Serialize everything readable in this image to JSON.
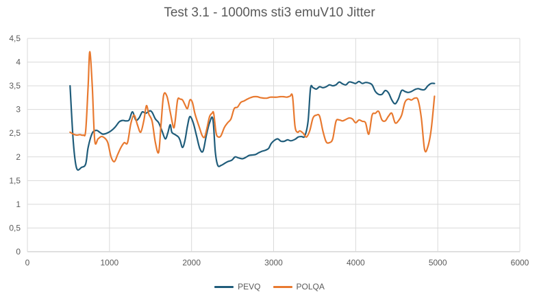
{
  "chart_data": {
    "type": "scatter",
    "title": "Test 3.1 - 1000ms sti3 emuV10 Jitter",
    "xlabel": "",
    "ylabel": "",
    "xlim": [
      0,
      6000
    ],
    "ylim": [
      0,
      4.5
    ],
    "x_ticks": [
      "0",
      "1000",
      "2000",
      "3000",
      "4000",
      "5000",
      "6000"
    ],
    "y_ticks": [
      "0",
      "0,5",
      "1",
      "1,5",
      "2",
      "2,5",
      "3",
      "3,5",
      "4",
      "4,5"
    ],
    "grid": "vertical and horizontal major gridlines",
    "legend_position": "bottom",
    "smooth": true,
    "series": [
      {
        "name": "PEVQ",
        "color": "#1f5c7a",
        "points": [
          [
            520,
            3.5
          ],
          [
            560,
            2.3
          ],
          [
            600,
            1.76
          ],
          [
            660,
            1.78
          ],
          [
            710,
            1.85
          ],
          [
            740,
            2.2
          ],
          [
            790,
            2.5
          ],
          [
            840,
            2.56
          ],
          [
            880,
            2.52
          ],
          [
            920,
            2.48
          ],
          [
            970,
            2.5
          ],
          [
            1020,
            2.55
          ],
          [
            1070,
            2.63
          ],
          [
            1120,
            2.74
          ],
          [
            1160,
            2.77
          ],
          [
            1200,
            2.76
          ],
          [
            1240,
            2.78
          ],
          [
            1280,
            2.95
          ],
          [
            1320,
            2.78
          ],
          [
            1360,
            2.82
          ],
          [
            1400,
            2.95
          ],
          [
            1440,
            2.92
          ],
          [
            1490,
            2.97
          ],
          [
            1520,
            2.94
          ],
          [
            1560,
            2.8
          ],
          [
            1600,
            2.72
          ],
          [
            1640,
            2.55
          ],
          [
            1680,
            2.38
          ],
          [
            1710,
            2.5
          ],
          [
            1740,
            2.68
          ],
          [
            1760,
            2.52
          ],
          [
            1800,
            2.47
          ],
          [
            1840,
            2.42
          ],
          [
            1860,
            2.35
          ],
          [
            1890,
            2.2
          ],
          [
            1920,
            2.35
          ],
          [
            1950,
            2.65
          ],
          [
            1980,
            2.85
          ],
          [
            2020,
            2.72
          ],
          [
            2060,
            2.45
          ],
          [
            2100,
            2.18
          ],
          [
            2140,
            2.12
          ],
          [
            2180,
            2.45
          ],
          [
            2220,
            2.72
          ],
          [
            2260,
            2.8
          ],
          [
            2290,
            2.1
          ],
          [
            2320,
            1.82
          ],
          [
            2360,
            1.82
          ],
          [
            2400,
            1.86
          ],
          [
            2440,
            1.9
          ],
          [
            2490,
            1.93
          ],
          [
            2530,
            2.0
          ],
          [
            2570,
            1.98
          ],
          [
            2620,
            1.96
          ],
          [
            2660,
            1.99
          ],
          [
            2700,
            2.03
          ],
          [
            2740,
            2.04
          ],
          [
            2780,
            2.05
          ],
          [
            2820,
            2.09
          ],
          [
            2860,
            2.12
          ],
          [
            2900,
            2.14
          ],
          [
            2940,
            2.18
          ],
          [
            2970,
            2.28
          ],
          [
            3010,
            2.35
          ],
          [
            3050,
            2.38
          ],
          [
            3090,
            2.33
          ],
          [
            3130,
            2.33
          ],
          [
            3170,
            2.36
          ],
          [
            3210,
            2.34
          ],
          [
            3260,
            2.37
          ],
          [
            3300,
            2.42
          ],
          [
            3340,
            2.43
          ],
          [
            3380,
            2.44
          ],
          [
            3420,
            2.75
          ],
          [
            3450,
            3.45
          ],
          [
            3480,
            3.46
          ],
          [
            3520,
            3.43
          ],
          [
            3560,
            3.48
          ],
          [
            3600,
            3.46
          ],
          [
            3640,
            3.48
          ],
          [
            3680,
            3.52
          ],
          [
            3720,
            3.5
          ],
          [
            3760,
            3.52
          ],
          [
            3800,
            3.58
          ],
          [
            3840,
            3.54
          ],
          [
            3880,
            3.52
          ],
          [
            3920,
            3.58
          ],
          [
            3960,
            3.57
          ],
          [
            4000,
            3.55
          ],
          [
            4040,
            3.59
          ],
          [
            4080,
            3.55
          ],
          [
            4120,
            3.57
          ],
          [
            4160,
            3.56
          ],
          [
            4200,
            3.52
          ],
          [
            4240,
            3.38
          ],
          [
            4280,
            3.32
          ],
          [
            4320,
            3.32
          ],
          [
            4360,
            3.4
          ],
          [
            4400,
            3.35
          ],
          [
            4440,
            3.2
          ],
          [
            4480,
            3.12
          ],
          [
            4520,
            3.22
          ],
          [
            4560,
            3.4
          ],
          [
            4600,
            3.38
          ],
          [
            4640,
            3.36
          ],
          [
            4680,
            3.38
          ],
          [
            4720,
            3.42
          ],
          [
            4760,
            3.44
          ],
          [
            4800,
            3.42
          ],
          [
            4840,
            3.42
          ],
          [
            4880,
            3.5
          ],
          [
            4920,
            3.55
          ],
          [
            4960,
            3.55
          ]
        ]
      },
      {
        "name": "POLQA",
        "color": "#e8792f",
        "points": [
          [
            520,
            2.52
          ],
          [
            560,
            2.48
          ],
          [
            600,
            2.46
          ],
          [
            640,
            2.47
          ],
          [
            680,
            2.46
          ],
          [
            710,
            2.55
          ],
          [
            740,
            3.5
          ],
          [
            760,
            4.22
          ],
          [
            790,
            3.5
          ],
          [
            820,
            2.35
          ],
          [
            860,
            2.38
          ],
          [
            900,
            2.43
          ],
          [
            940,
            2.4
          ],
          [
            980,
            2.3
          ],
          [
            1020,
            2.0
          ],
          [
            1060,
            1.9
          ],
          [
            1100,
            2.05
          ],
          [
            1140,
            2.2
          ],
          [
            1180,
            2.3
          ],
          [
            1220,
            2.3
          ],
          [
            1260,
            2.7
          ],
          [
            1300,
            2.88
          ],
          [
            1340,
            2.68
          ],
          [
            1380,
            2.52
          ],
          [
            1420,
            2.78
          ],
          [
            1450,
            3.08
          ],
          [
            1480,
            2.9
          ],
          [
            1520,
            2.75
          ],
          [
            1560,
            2.3
          ],
          [
            1600,
            2.1
          ],
          [
            1630,
            2.72
          ],
          [
            1660,
            3.3
          ],
          [
            1700,
            3.28
          ],
          [
            1740,
            2.95
          ],
          [
            1780,
            2.62
          ],
          [
            1800,
            2.75
          ],
          [
            1830,
            3.2
          ],
          [
            1860,
            3.22
          ],
          [
            1890,
            3.2
          ],
          [
            1920,
            3.1
          ],
          [
            1950,
            3.02
          ],
          [
            1980,
            3.2
          ],
          [
            2010,
            3.15
          ],
          [
            2040,
            2.92
          ],
          [
            2070,
            2.75
          ],
          [
            2100,
            2.6
          ],
          [
            2130,
            2.45
          ],
          [
            2160,
            2.42
          ],
          [
            2190,
            2.62
          ],
          [
            2220,
            2.85
          ],
          [
            2250,
            2.92
          ],
          [
            2270,
            2.92
          ],
          [
            2300,
            2.5
          ],
          [
            2330,
            2.42
          ],
          [
            2360,
            2.45
          ],
          [
            2400,
            2.62
          ],
          [
            2440,
            2.72
          ],
          [
            2480,
            2.8
          ],
          [
            2520,
            3.02
          ],
          [
            2560,
            3.05
          ],
          [
            2600,
            3.15
          ],
          [
            2640,
            3.18
          ],
          [
            2680,
            3.22
          ],
          [
            2720,
            3.25
          ],
          [
            2760,
            3.27
          ],
          [
            2800,
            3.27
          ],
          [
            2840,
            3.25
          ],
          [
            2880,
            3.24
          ],
          [
            2920,
            3.24
          ],
          [
            2960,
            3.26
          ],
          [
            3000,
            3.26
          ],
          [
            3040,
            3.26
          ],
          [
            3080,
            3.27
          ],
          [
            3120,
            3.27
          ],
          [
            3160,
            3.26
          ],
          [
            3200,
            3.28
          ],
          [
            3230,
            3.28
          ],
          [
            3260,
            2.65
          ],
          [
            3290,
            2.52
          ],
          [
            3320,
            2.55
          ],
          [
            3360,
            2.5
          ],
          [
            3400,
            2.42
          ],
          [
            3440,
            2.55
          ],
          [
            3480,
            2.82
          ],
          [
            3520,
            2.88
          ],
          [
            3560,
            2.86
          ],
          [
            3600,
            2.55
          ],
          [
            3640,
            2.32
          ],
          [
            3680,
            2.3
          ],
          [
            3720,
            2.38
          ],
          [
            3760,
            2.75
          ],
          [
            3800,
            2.78
          ],
          [
            3840,
            2.76
          ],
          [
            3880,
            2.79
          ],
          [
            3920,
            2.82
          ],
          [
            3960,
            2.8
          ],
          [
            4000,
            2.72
          ],
          [
            4040,
            2.78
          ],
          [
            4080,
            2.75
          ],
          [
            4120,
            2.72
          ],
          [
            4160,
            2.48
          ],
          [
            4200,
            2.88
          ],
          [
            4240,
            2.92
          ],
          [
            4280,
            2.96
          ],
          [
            4320,
            2.78
          ],
          [
            4360,
            2.76
          ],
          [
            4400,
            2.86
          ],
          [
            4440,
            2.92
          ],
          [
            4480,
            2.72
          ],
          [
            4520,
            2.76
          ],
          [
            4560,
            2.88
          ],
          [
            4600,
            3.15
          ],
          [
            4640,
            3.22
          ],
          [
            4680,
            3.2
          ],
          [
            4720,
            3.24
          ],
          [
            4760,
            3.2
          ],
          [
            4800,
            2.82
          ],
          [
            4840,
            2.15
          ],
          [
            4880,
            2.22
          ],
          [
            4920,
            2.58
          ],
          [
            4960,
            3.28
          ]
        ]
      }
    ]
  }
}
